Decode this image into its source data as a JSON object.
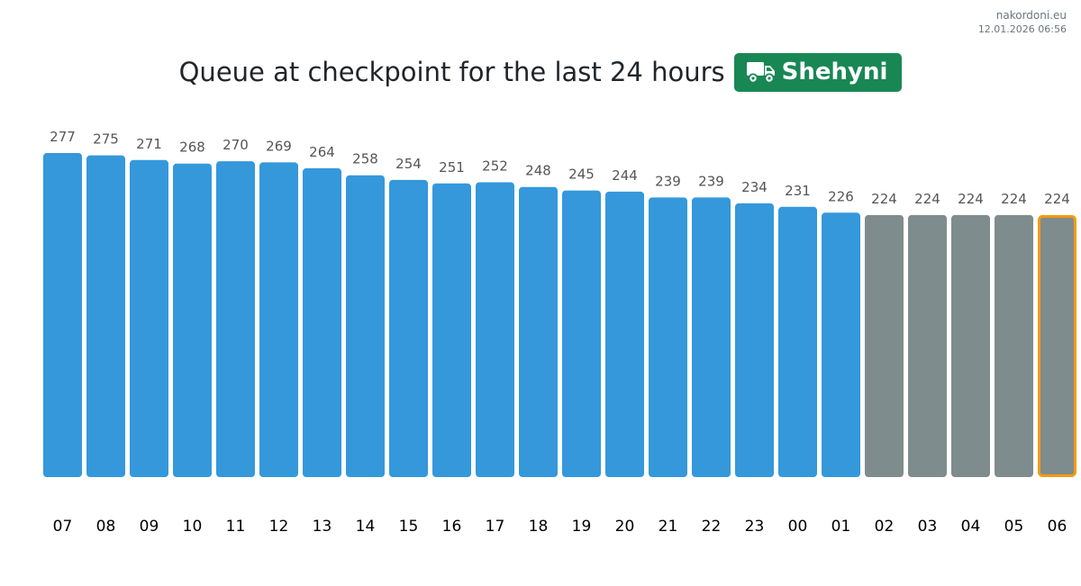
{
  "header": {
    "site": "nakordoni.eu",
    "timestamp": "12.01.2026 06:56",
    "title": "Queue at checkpoint for the last 24 hours",
    "checkpoint": "Shehyni",
    "checkpoint_icon": "truck-icon",
    "checkpoint_color": "#198754"
  },
  "chart_data": {
    "type": "bar",
    "title": "Queue at checkpoint for the last 24 hours",
    "xlabel": "",
    "ylabel": "",
    "categories": [
      "07",
      "08",
      "09",
      "10",
      "11",
      "12",
      "13",
      "14",
      "15",
      "16",
      "17",
      "18",
      "19",
      "20",
      "21",
      "22",
      "23",
      "00",
      "01",
      "02",
      "03",
      "04",
      "05",
      "06"
    ],
    "values": [
      277,
      275,
      271,
      268,
      270,
      269,
      264,
      258,
      254,
      251,
      252,
      248,
      245,
      244,
      239,
      239,
      234,
      231,
      226,
      224,
      224,
      224,
      224,
      224
    ],
    "ylim": [
      0,
      277
    ],
    "grid": false,
    "colors": {
      "measured": "#3498db",
      "estimated": "#7f8c8d",
      "current_outline": "#f39c12",
      "label": "#555555",
      "tick": "#000000"
    },
    "estimated_from_index": 19,
    "current_index": 23
  }
}
